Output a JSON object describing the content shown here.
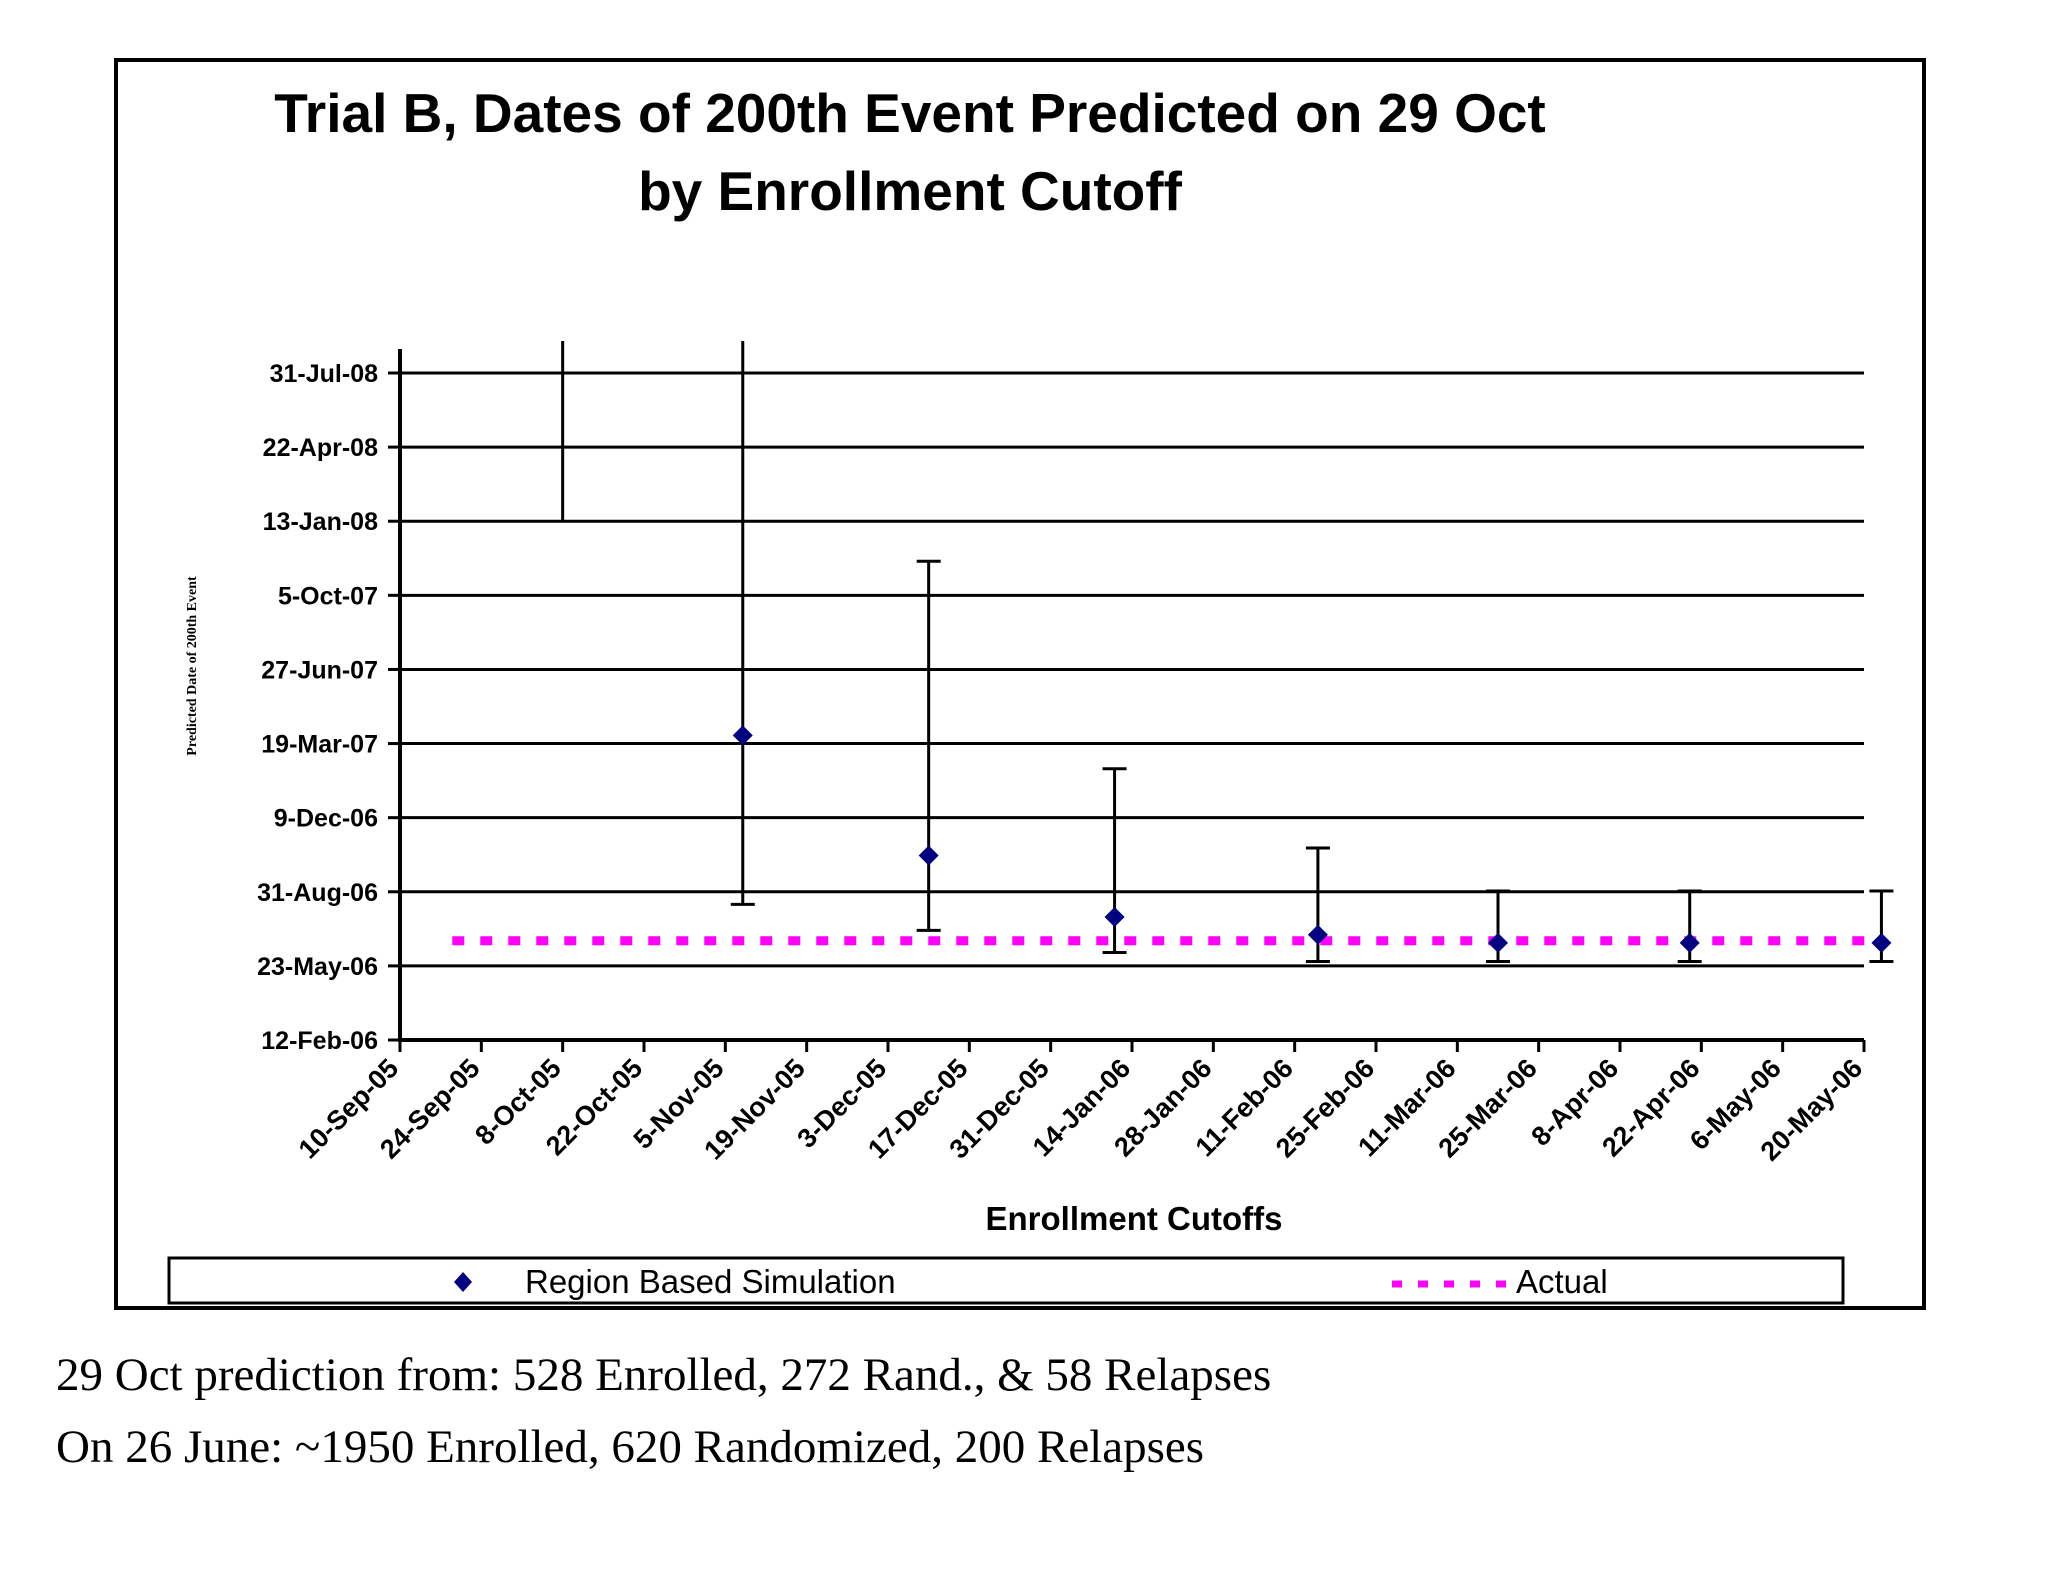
{
  "chart_data": {
    "type": "scatter",
    "title": [
      "Trial B, Dates of 200th Event Predicted on 29 Oct",
      "by Enrollment Cutoff"
    ],
    "xlabel": "Enrollment Cutoffs",
    "ylabel": "Predicted Date of 200th Event",
    "x_ticks": [
      "10-Sep-05",
      "24-Sep-05",
      "8-Oct-05",
      "22-Oct-05",
      "5-Nov-05",
      "19-Nov-05",
      "3-Dec-05",
      "17-Dec-05",
      "31-Dec-05",
      "14-Jan-06",
      "28-Jan-06",
      "11-Feb-06",
      "25-Feb-06",
      "11-Mar-06",
      "25-Mar-06",
      "8-Apr-06",
      "22-Apr-06",
      "6-May-06",
      "20-May-06"
    ],
    "xlim": [
      "10-Sep-05",
      "20-May-06"
    ],
    "y_ticks": [
      "12-Feb-06",
      "23-May-06",
      "31-Aug-06",
      "9-Dec-06",
      "19-Mar-07",
      "27-Jun-07",
      "5-Oct-07",
      "13-Jan-08",
      "22-Apr-08",
      "31-Jul-08"
    ],
    "ylim": [
      "12-Feb-06",
      "31-Jul-08"
    ],
    "grid": "horizontal",
    "legend": {
      "position": "bottom",
      "entries": [
        {
          "label": "Region Based Simulation",
          "marker": "diamond",
          "color": "#000080"
        },
        {
          "label": "Actual",
          "marker": "dashed-line",
          "color": "#ff00ff"
        }
      ]
    },
    "series": [
      {
        "name": "Region Based Simulation",
        "color": "#000080",
        "points": [
          {
            "x": "8-Oct-05",
            "y": null,
            "low": "13-Jan-08",
            "high": null
          },
          {
            "x": "8-Nov-05",
            "y": "30-Mar-07",
            "low": "14-Aug-06",
            "high": null
          },
          {
            "x": "10-Dec-05",
            "y": "19-Oct-06",
            "low": "10-Jul-06",
            "high": "20-Nov-07"
          },
          {
            "x": "11-Jan-06",
            "y": "28-Jul-06",
            "low": "10-Jun-06",
            "high": "13-Feb-07"
          },
          {
            "x": "15-Feb-06",
            "y": "4-Jul-06",
            "low": "29-May-06",
            "high": "29-Oct-06"
          },
          {
            "x": "18-Mar-06",
            "y": "23-Jun-06",
            "low": "29-May-06",
            "high": "1-Sep-06"
          },
          {
            "x": "20-Apr-06",
            "y": "23-Jun-06",
            "low": "29-May-06",
            "high": "1-Sep-06"
          },
          {
            "x": "23-May-06",
            "y": "23-Jun-06",
            "low": "29-May-06",
            "high": "1-Sep-06"
          }
        ]
      },
      {
        "name": "Actual",
        "color": "#ff00ff",
        "style": "dashed",
        "y": "26-Jun-06",
        "x_range": [
          "19-Sep-05",
          "23-May-06"
        ]
      }
    ]
  },
  "captions": [
    "29 Oct prediction from: 528 Enrolled, 272 Rand., & 58 Relapses",
    "On 26 June: ~1950 Enrolled, 620 Randomized, 200 Relapses"
  ]
}
